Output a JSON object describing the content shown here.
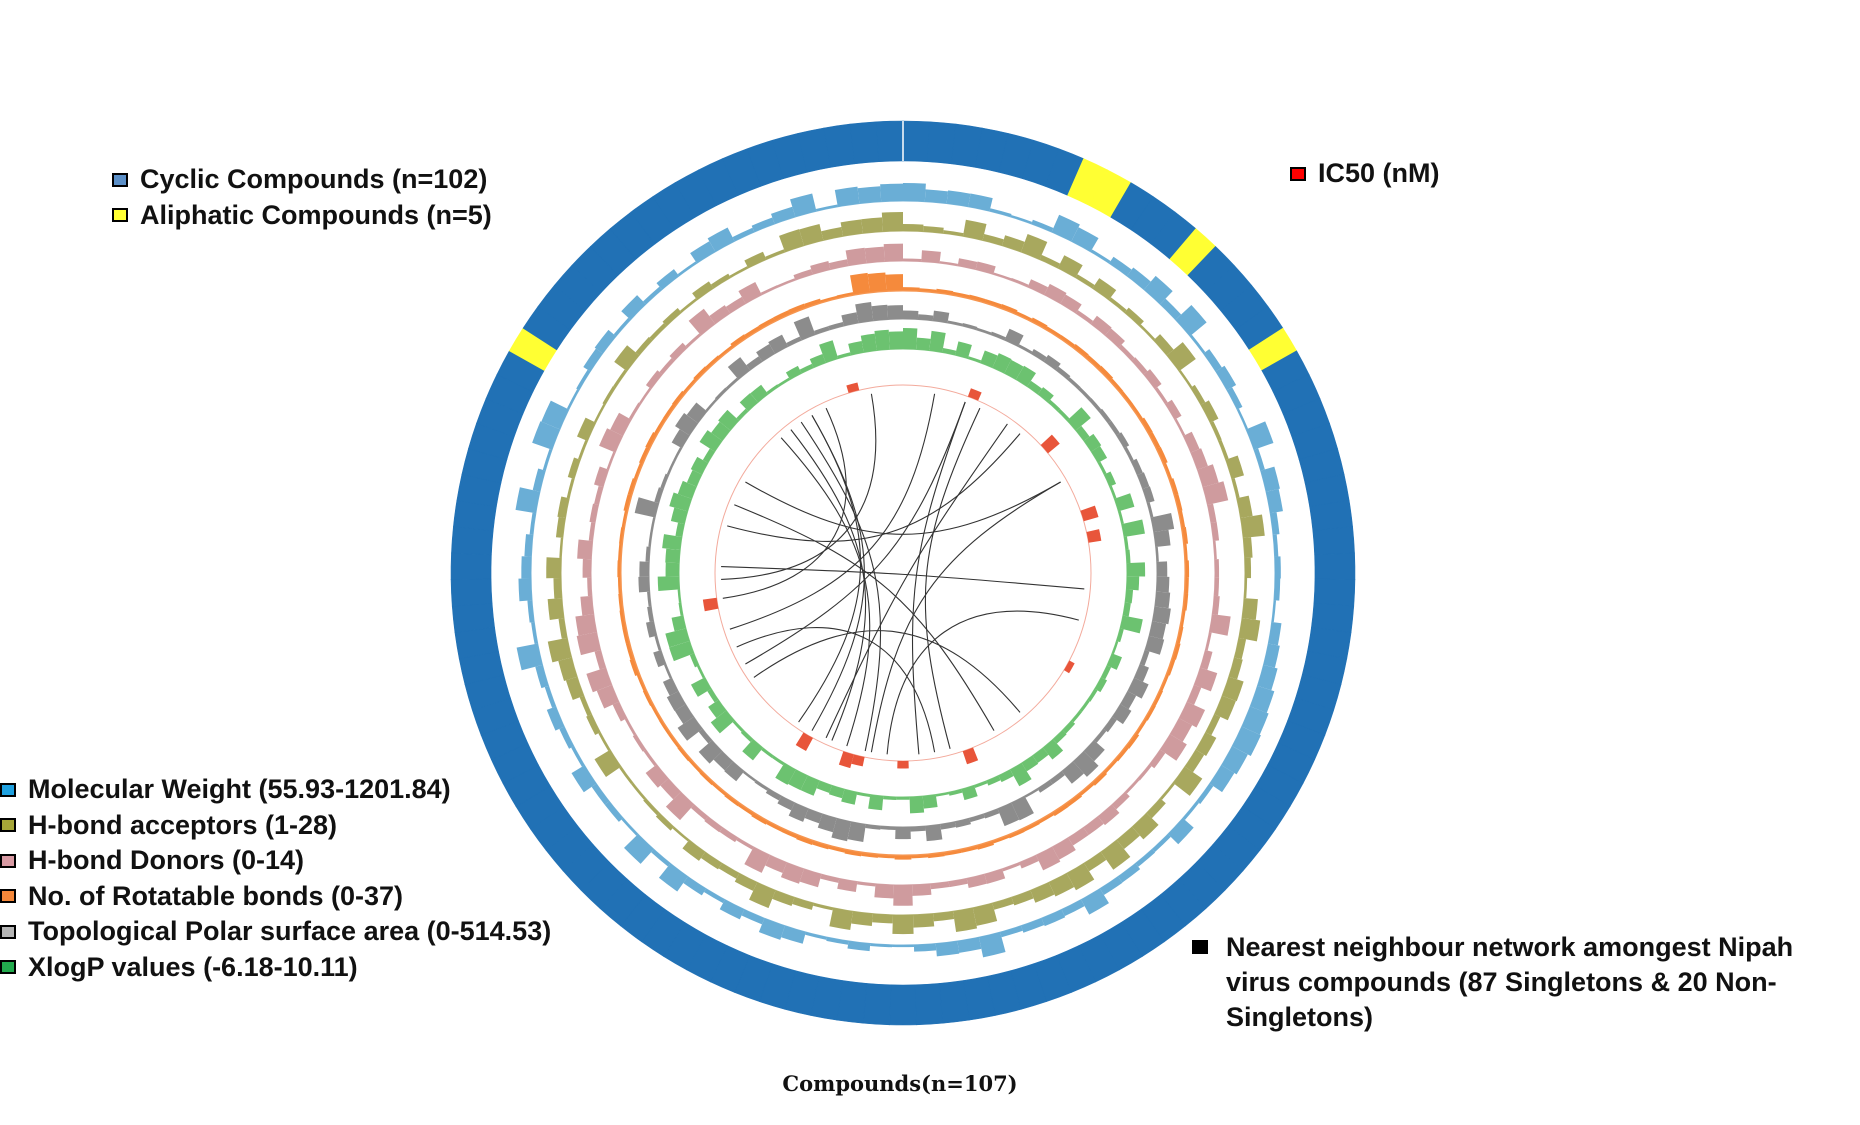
{
  "legends": {
    "top_left": [
      {
        "label": "Cyclic Compounds (n=102)",
        "color": "#5b8fc7"
      },
      {
        "label": "Aliphatic Compounds (n=5)",
        "color": "#ffff33"
      }
    ],
    "top_right": [
      {
        "label": "IC50 (nM)",
        "color": "#ff0000"
      }
    ],
    "bottom_left": [
      {
        "label": "Molecular Weight (55.93-1201.84)",
        "color": "#1fa1e0"
      },
      {
        "label": "H-bond acceptors (1-28)",
        "color": "#a6a638"
      },
      {
        "label": "H-bond Donors (0-14)",
        "color": "#d89aa3"
      },
      {
        "label": "No. of Rotatable bonds (0-37)",
        "color": "#f5883a"
      },
      {
        "label": "Topological Polar surface area (0-514.53)",
        "color": "#b5b5b5"
      },
      {
        "label": "XlogP values (-6.18-10.11)",
        "color": "#22aa4d"
      }
    ],
    "bottom_right": [
      {
        "label": "Nearest neighbour network amongest Nipah virus compounds (87 Singletons & 20 Non-Singletons)",
        "color": "#000000"
      }
    ]
  },
  "caption": "Compounds(n=107)",
  "diagram": {
    "compound_count": 107,
    "outer_ring": {
      "cyclic_color": "#2171b5",
      "aliphatic_color": "#ffff33",
      "cyclic_count": 102,
      "aliphatic_count": 5
    },
    "tracks": [
      {
        "name": "Molecular Weight",
        "color": "#6aaed6"
      },
      {
        "name": "H-bond acceptors",
        "color": "#a8a85e"
      },
      {
        "name": "H-bond Donors",
        "color": "#cf9b9e"
      },
      {
        "name": "No. of Rotatable bonds",
        "color": "#f58a3c"
      },
      {
        "name": "Topological Polar surface area",
        "color": "#8c8c8c"
      },
      {
        "name": "XlogP values",
        "color": "#6cc270"
      },
      {
        "name": "IC50 (nM)",
        "color": "#e8553a"
      }
    ],
    "network": {
      "singletons": 87,
      "non_singletons": 20
    }
  }
}
